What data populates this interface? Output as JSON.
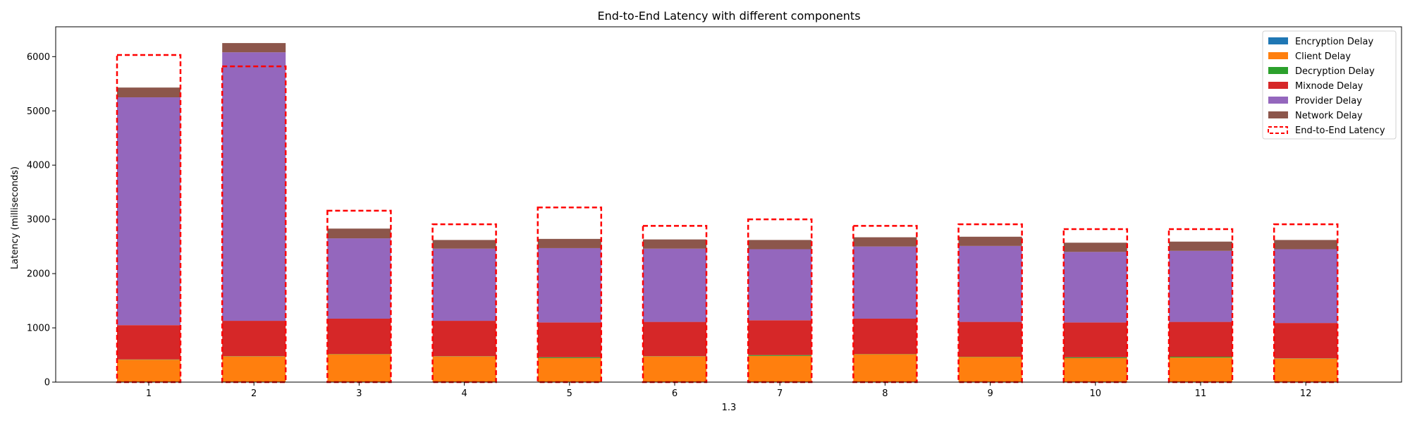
{
  "chart_data": {
    "type": "bar",
    "stacked": true,
    "title": "End-to-End Latency with different components",
    "xlabel": "1.3",
    "ylabel": "Latency (milliseconds)",
    "ylim": [
      0,
      6550
    ],
    "yticks": [
      0,
      1000,
      2000,
      3000,
      4000,
      5000,
      6000
    ],
    "grid": false,
    "legend_position": "top-right",
    "categories": [
      "1",
      "2",
      "3",
      "4",
      "5",
      "6",
      "7",
      "8",
      "9",
      "10",
      "11",
      "12"
    ],
    "series": [
      {
        "name": "Encryption Delay",
        "color": "#1f77b4",
        "values": [
          3,
          3,
          3,
          3,
          3,
          3,
          3,
          3,
          3,
          3,
          3,
          3
        ]
      },
      {
        "name": "Client Delay",
        "color": "#ff7f0e",
        "values": [
          410,
          470,
          510,
          470,
          440,
          470,
          480,
          510,
          460,
          440,
          450,
          430
        ]
      },
      {
        "name": "Decryption Delay",
        "color": "#2ca02c",
        "values": [
          5,
          5,
          5,
          5,
          15,
          5,
          15,
          5,
          5,
          15,
          15,
          5
        ]
      },
      {
        "name": "Mixnode Delay",
        "color": "#d62728",
        "values": [
          632,
          652,
          652,
          652,
          642,
          632,
          642,
          652,
          642,
          642,
          642,
          652
        ]
      },
      {
        "name": "Provider Delay",
        "color": "#9467bd",
        "values": [
          4200,
          4950,
          1480,
          1330,
          1370,
          1350,
          1310,
          1330,
          1400,
          1300,
          1310,
          1360
        ]
      },
      {
        "name": "Network Delay",
        "color": "#8c564b",
        "values": [
          180,
          170,
          180,
          160,
          170,
          170,
          170,
          170,
          170,
          170,
          170,
          170
        ]
      }
    ],
    "end_to_end": {
      "name": "End-to-End Latency",
      "color": "#ff0000",
      "values": [
        6030,
        5820,
        3160,
        2910,
        3220,
        2880,
        3000,
        2880,
        2910,
        2820,
        2820,
        2910
      ]
    }
  }
}
